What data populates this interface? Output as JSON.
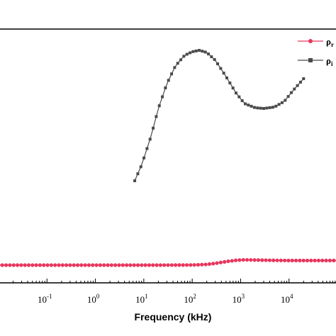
{
  "chart_data": {
    "type": "line",
    "title": "",
    "xlabel": "Frequency (kHz)",
    "ylabel": "",
    "x_scale": "log",
    "xlim": [
      0.01,
      100000
    ],
    "x_tick_labels": [
      {
        "base": "10",
        "exp": "-1",
        "value": 0.1
      },
      {
        "base": "10",
        "exp": "0",
        "value": 1
      },
      {
        "base": "10",
        "exp": "1",
        "value": 10
      },
      {
        "base": "10",
        "exp": "2",
        "value": 100
      },
      {
        "base": "10",
        "exp": "3",
        "value": 1000
      },
      {
        "base": "10",
        "exp": "4",
        "value": 10000
      }
    ],
    "legend": {
      "placement": "top-right",
      "entries": [
        {
          "label": "ρ",
          "sub": "r",
          "marker": "circle",
          "color": "#e8365d"
        },
        {
          "label": "ρ",
          "sub": "i",
          "marker": "square",
          "color": "#4a4a4a"
        }
      ]
    },
    "series": [
      {
        "label": "ρ",
        "sub": "r",
        "color": "#e8365d",
        "marker": "circle",
        "points": [
          [
            0.01,
            0.09
          ],
          [
            20,
            0.09
          ],
          [
            100,
            0.092
          ],
          [
            200,
            0.1
          ],
          [
            300,
            0.115
          ],
          [
            500,
            0.14
          ],
          [
            800,
            0.158
          ],
          [
            1200,
            0.165
          ],
          [
            2000,
            0.162
          ],
          [
            4000,
            0.158
          ],
          [
            10000,
            0.155
          ],
          [
            100000,
            0.155
          ]
        ]
      },
      {
        "label": "ρ",
        "sub": "i",
        "color": "#4a4a4a",
        "marker": "square",
        "points": [
          [
            6.5,
            1.28
          ],
          [
            9,
            1.5
          ],
          [
            14,
            1.9
          ],
          [
            20,
            2.3
          ],
          [
            30,
            2.65
          ],
          [
            45,
            2.9
          ],
          [
            70,
            3.05
          ],
          [
            100,
            3.1
          ],
          [
            140,
            3.12
          ],
          [
            200,
            3.09
          ],
          [
            300,
            2.98
          ],
          [
            500,
            2.75
          ],
          [
            800,
            2.52
          ],
          [
            1200,
            2.37
          ],
          [
            2000,
            2.31
          ],
          [
            3000,
            2.3
          ],
          [
            5000,
            2.32
          ],
          [
            8000,
            2.4
          ],
          [
            12000,
            2.55
          ],
          [
            20000,
            2.72
          ]
        ]
      }
    ]
  }
}
